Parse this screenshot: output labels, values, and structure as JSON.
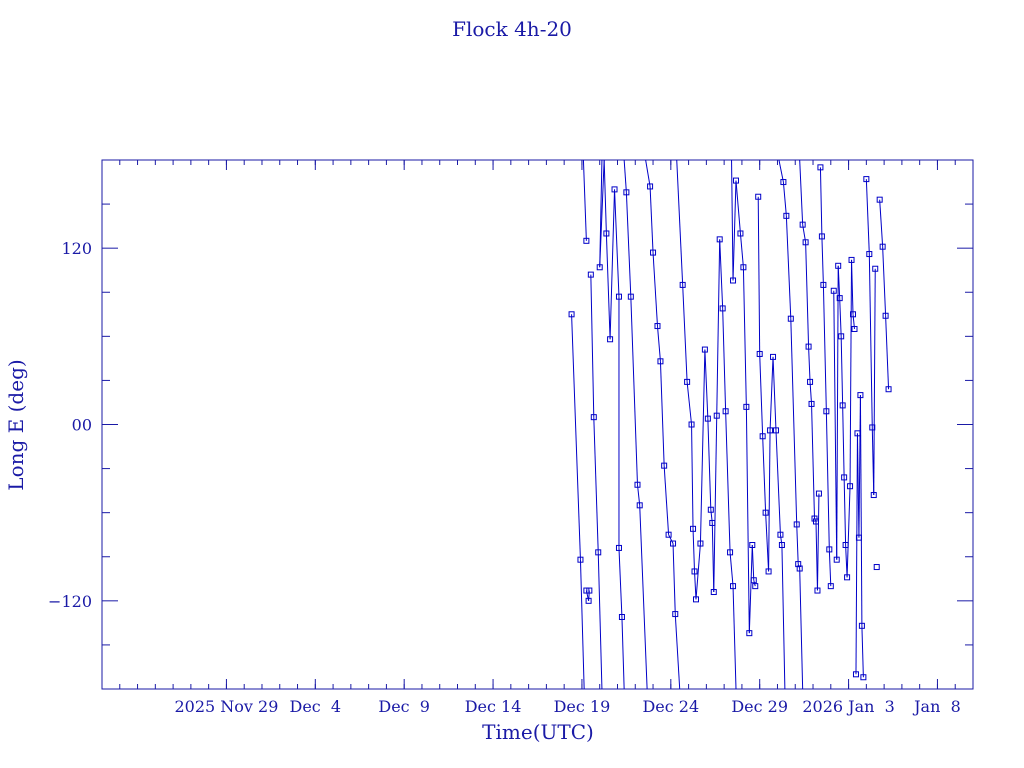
{
  "chart_data": {
    "type": "line",
    "title": "Flock 4h-20",
    "xlabel": "Time(UTC)",
    "ylabel": "Long E (deg)",
    "x_unit": "date (UTC)",
    "xlim": [
      "2025-11-22",
      "2026-01-10"
    ],
    "ylim": [
      -180,
      180
    ],
    "grid": false,
    "x_ticks": [
      {
        "x": "2025-11-29",
        "label": "2025 Nov 29"
      },
      {
        "x": "2025-12-04",
        "label": "Dec  4"
      },
      {
        "x": "2025-12-09",
        "label": "Dec  9"
      },
      {
        "x": "2025-12-14",
        "label": "Dec 14"
      },
      {
        "x": "2025-12-19",
        "label": "Dec 19"
      },
      {
        "x": "2025-12-24",
        "label": "Dec 24"
      },
      {
        "x": "2025-12-29",
        "label": "Dec 29"
      },
      {
        "x": "2026-01-03",
        "label": "2026 Jan  3"
      },
      {
        "x": "2026-01-08",
        "label": "Jan  8"
      }
    ],
    "y_ticks": [
      {
        "y": 120,
        "label": "120"
      },
      {
        "y": 0,
        "label": "00"
      },
      {
        "y": -120,
        "label": "−120"
      }
    ],
    "series": [
      {
        "color": "#0000c8",
        "style": "line+square",
        "points": [
          {
            "x": "2025-12-18 10:00",
            "y": 75
          },
          {
            "x": "2025-12-18 22:00",
            "y": -92
          },
          {
            "x": "2025-12-19 03:00",
            "y": -180
          },
          {
            "x": "2025-12-19 02:00",
            "y": 180
          },
          {
            "x": "2025-12-19 06:00",
            "y": 125
          },
          {
            "x": "2025-12-19 06:00",
            "y": -113
          },
          {
            "x": "2025-12-19 09:00",
            "y": -120
          },
          {
            "x": "2025-12-19 10:00",
            "y": -113
          },
          {
            "x": "2025-12-19 12:00",
            "y": 102
          },
          {
            "x": "2025-12-19 16:00",
            "y": 5
          },
          {
            "x": "2025-12-19 22:00",
            "y": -87
          },
          {
            "x": "2025-12-20 03:00",
            "y": -180
          },
          {
            "x": "2025-12-20 03:00",
            "y": 180
          },
          {
            "x": "2025-12-20 00:00",
            "y": 107
          },
          {
            "x": "2025-12-20 06:00",
            "y": 180
          },
          {
            "x": "2025-12-20 09:00",
            "y": 130
          },
          {
            "x": "2025-12-20 14:00",
            "y": 58
          },
          {
            "x": "2025-12-20 20:00",
            "y": 160
          },
          {
            "x": "2025-12-21 02:00",
            "y": 87
          },
          {
            "x": "2025-12-21 02:00",
            "y": -84
          },
          {
            "x": "2025-12-21 06:00",
            "y": -131
          },
          {
            "x": "2025-12-21 09:00",
            "y": -180
          },
          {
            "x": "2025-12-21 09:00",
            "y": 180
          },
          {
            "x": "2025-12-21 12:00",
            "y": 158
          },
          {
            "x": "2025-12-21 18:00",
            "y": 87
          },
          {
            "x": "2025-12-22 03:00",
            "y": -41
          },
          {
            "x": "2025-12-22 06:00",
            "y": -55
          },
          {
            "x": "2025-12-22 16:00",
            "y": -180
          },
          {
            "x": "2025-12-22 14:00",
            "y": 180
          },
          {
            "x": "2025-12-22 20:00",
            "y": 162
          },
          {
            "x": "2025-12-23 00:00",
            "y": 117
          },
          {
            "x": "2025-12-23 06:00",
            "y": 67
          },
          {
            "x": "2025-12-23 10:00",
            "y": 43
          },
          {
            "x": "2025-12-23 15:00",
            "y": -28
          },
          {
            "x": "2025-12-23 21:00",
            "y": -75
          },
          {
            "x": "2025-12-24 03:00",
            "y": -81
          },
          {
            "x": "2025-12-24 06:00",
            "y": -129
          },
          {
            "x": "2025-12-24 12:00",
            "y": -180
          },
          {
            "x": "2025-12-24 08:00",
            "y": 180
          },
          {
            "x": "2025-12-24 16:00",
            "y": 95
          },
          {
            "x": "2025-12-24 22:00",
            "y": 29
          },
          {
            "x": "2025-12-25 04:00",
            "y": 0
          },
          {
            "x": "2025-12-25 06:00",
            "y": -71
          },
          {
            "x": "2025-12-25 08:00",
            "y": -100
          },
          {
            "x": "2025-12-25 10:00",
            "y": -119
          },
          {
            "x": "2025-12-25 16:00",
            "y": -81
          },
          {
            "x": "2025-12-25 22:00",
            "y": 51
          },
          {
            "x": "2025-12-26 02:00",
            "y": 4
          },
          {
            "x": "2025-12-26 06:00",
            "y": -58
          },
          {
            "x": "2025-12-26 08:00",
            "y": -67
          },
          {
            "x": "2025-12-26 10:00",
            "y": -114
          },
          {
            "x": "2025-12-26 14:00",
            "y": 6
          },
          {
            "x": "2025-12-26 18:00",
            "y": 126
          },
          {
            "x": "2025-12-26 22:00",
            "y": 79
          },
          {
            "x": "2025-12-27 02:00",
            "y": 9
          },
          {
            "x": "2025-12-27 08:00",
            "y": -87
          },
          {
            "x": "2025-12-27 12:00",
            "y": -110
          },
          {
            "x": "2025-12-27 16:00",
            "y": -180
          },
          {
            "x": "2025-12-27 10:00",
            "y": 180
          },
          {
            "x": "2025-12-27 12:00",
            "y": 98
          },
          {
            "x": "2025-12-27 16:00",
            "y": 166
          },
          {
            "x": "2025-12-27 22:00",
            "y": 130
          },
          {
            "x": "2025-12-28 02:00",
            "y": 107
          },
          {
            "x": "2025-12-28 06:00",
            "y": 12
          },
          {
            "x": "2025-12-28 10:00",
            "y": -142
          },
          {
            "x": "2025-12-28 14:00",
            "y": -82
          },
          {
            "x": "2025-12-28 16:00",
            "y": -106
          },
          {
            "x": "2025-12-28 18:00",
            "y": -110
          },
          {
            "x": "2025-12-28 22:00",
            "y": 155
          },
          {
            "x": "2025-12-29 00:00",
            "y": 48
          },
          {
            "x": "2025-12-29 04:00",
            "y": -8
          },
          {
            "x": "2025-12-29 08:00",
            "y": -60
          },
          {
            "x": "2025-12-29 12:00",
            "y": -100
          },
          {
            "x": "2025-12-29 14:00",
            "y": -4
          },
          {
            "x": "2025-12-29 18:00",
            "y": 46
          },
          {
            "x": "2025-12-29 22:00",
            "y": -4
          },
          {
            "x": "2025-12-30 04:00",
            "y": -75
          },
          {
            "x": "2025-12-30 06:00",
            "y": -82
          },
          {
            "x": "2025-12-30 10:00",
            "y": -180
          },
          {
            "x": "2025-12-30 02:00",
            "y": 180
          },
          {
            "x": "2025-12-30 08:00",
            "y": 165
          },
          {
            "x": "2025-12-30 12:00",
            "y": 142
          },
          {
            "x": "2025-12-30 18:00",
            "y": 72
          },
          {
            "x": "2025-12-31 02:00",
            "y": -68
          },
          {
            "x": "2025-12-31 04:00",
            "y": -95
          },
          {
            "x": "2025-12-31 06:00",
            "y": -98
          },
          {
            "x": "2025-12-31 10:00",
            "y": -180
          },
          {
            "x": "2025-12-31 06:00",
            "y": 180
          },
          {
            "x": "2025-12-31 10:00",
            "y": 136
          },
          {
            "x": "2025-12-31 14:00",
            "y": 124
          },
          {
            "x": "2025-12-31 18:00",
            "y": 53
          },
          {
            "x": "2025-12-31 20:00",
            "y": 29
          },
          {
            "x": "2025-12-31 22:00",
            "y": 14
          },
          {
            "x": "2026-01-01 02:00",
            "y": -64
          },
          {
            "x": "2026-01-01 04:00",
            "y": -66
          },
          {
            "x": "2026-01-01 06:00",
            "y": -113
          },
          {
            "x": "2026-01-01 08:00",
            "y": -47
          },
          {
            "x": "2026-01-01 10:00",
            "y": 175
          },
          {
            "x": "2026-01-01 12:00",
            "y": 128
          },
          {
            "x": "2026-01-01 14:00",
            "y": 95
          },
          {
            "x": "2026-01-01 18:00",
            "y": 9
          },
          {
            "x": "2026-01-01 22:00",
            "y": -85
          },
          {
            "x": "2026-01-02 00:00",
            "y": -110
          },
          {
            "x": "2026-01-02 04:00",
            "y": 91
          },
          {
            "x": "2026-01-02 08:00",
            "y": -92
          },
          {
            "x": "2026-01-02 10:00",
            "y": 108
          },
          {
            "x": "2026-01-02 12:00",
            "y": 86
          },
          {
            "x": "2026-01-02 14:00",
            "y": 60
          },
          {
            "x": "2026-01-02 16:00",
            "y": 13
          },
          {
            "x": "2026-01-02 18:00",
            "y": -36
          },
          {
            "x": "2026-01-02 20:00",
            "y": -82
          },
          {
            "x": "2026-01-02 22:00",
            "y": -104
          },
          {
            "x": "2026-01-03 02:00",
            "y": -42
          },
          {
            "x": "2026-01-03 04:00",
            "y": 112
          },
          {
            "x": "2026-01-03 06:00",
            "y": 75
          },
          {
            "x": "2026-01-03 08:00",
            "y": 65
          },
          {
            "x": "2026-01-03 10:00",
            "y": -170
          },
          {
            "x": "2026-01-03 12:00",
            "y": -6
          },
          {
            "x": "2026-01-03 14:00",
            "y": -77
          },
          {
            "x": "2026-01-03 16:00",
            "y": 20
          },
          {
            "x": "2026-01-03 18:00",
            "y": -137
          },
          {
            "x": "2026-01-03 20:00",
            "y": -172
          },
          {
            "x": "2026-01-04 00:00",
            "y": 167
          },
          {
            "x": "2026-01-04 04:00",
            "y": 116
          },
          {
            "x": "2026-01-04 08:00",
            "y": -2
          },
          {
            "x": "2026-01-04 10:00",
            "y": -48
          },
          {
            "x": "2026-01-04 12:00",
            "y": 106
          },
          {
            "x": "2026-01-04 14:00",
            "y": -97
          },
          {
            "x": "2026-01-04 18:00",
            "y": 153
          },
          {
            "x": "2026-01-04 22:00",
            "y": 121
          },
          {
            "x": "2026-01-05 02:00",
            "y": 74
          },
          {
            "x": "2026-01-05 06:00",
            "y": 24
          }
        ]
      }
    ]
  }
}
